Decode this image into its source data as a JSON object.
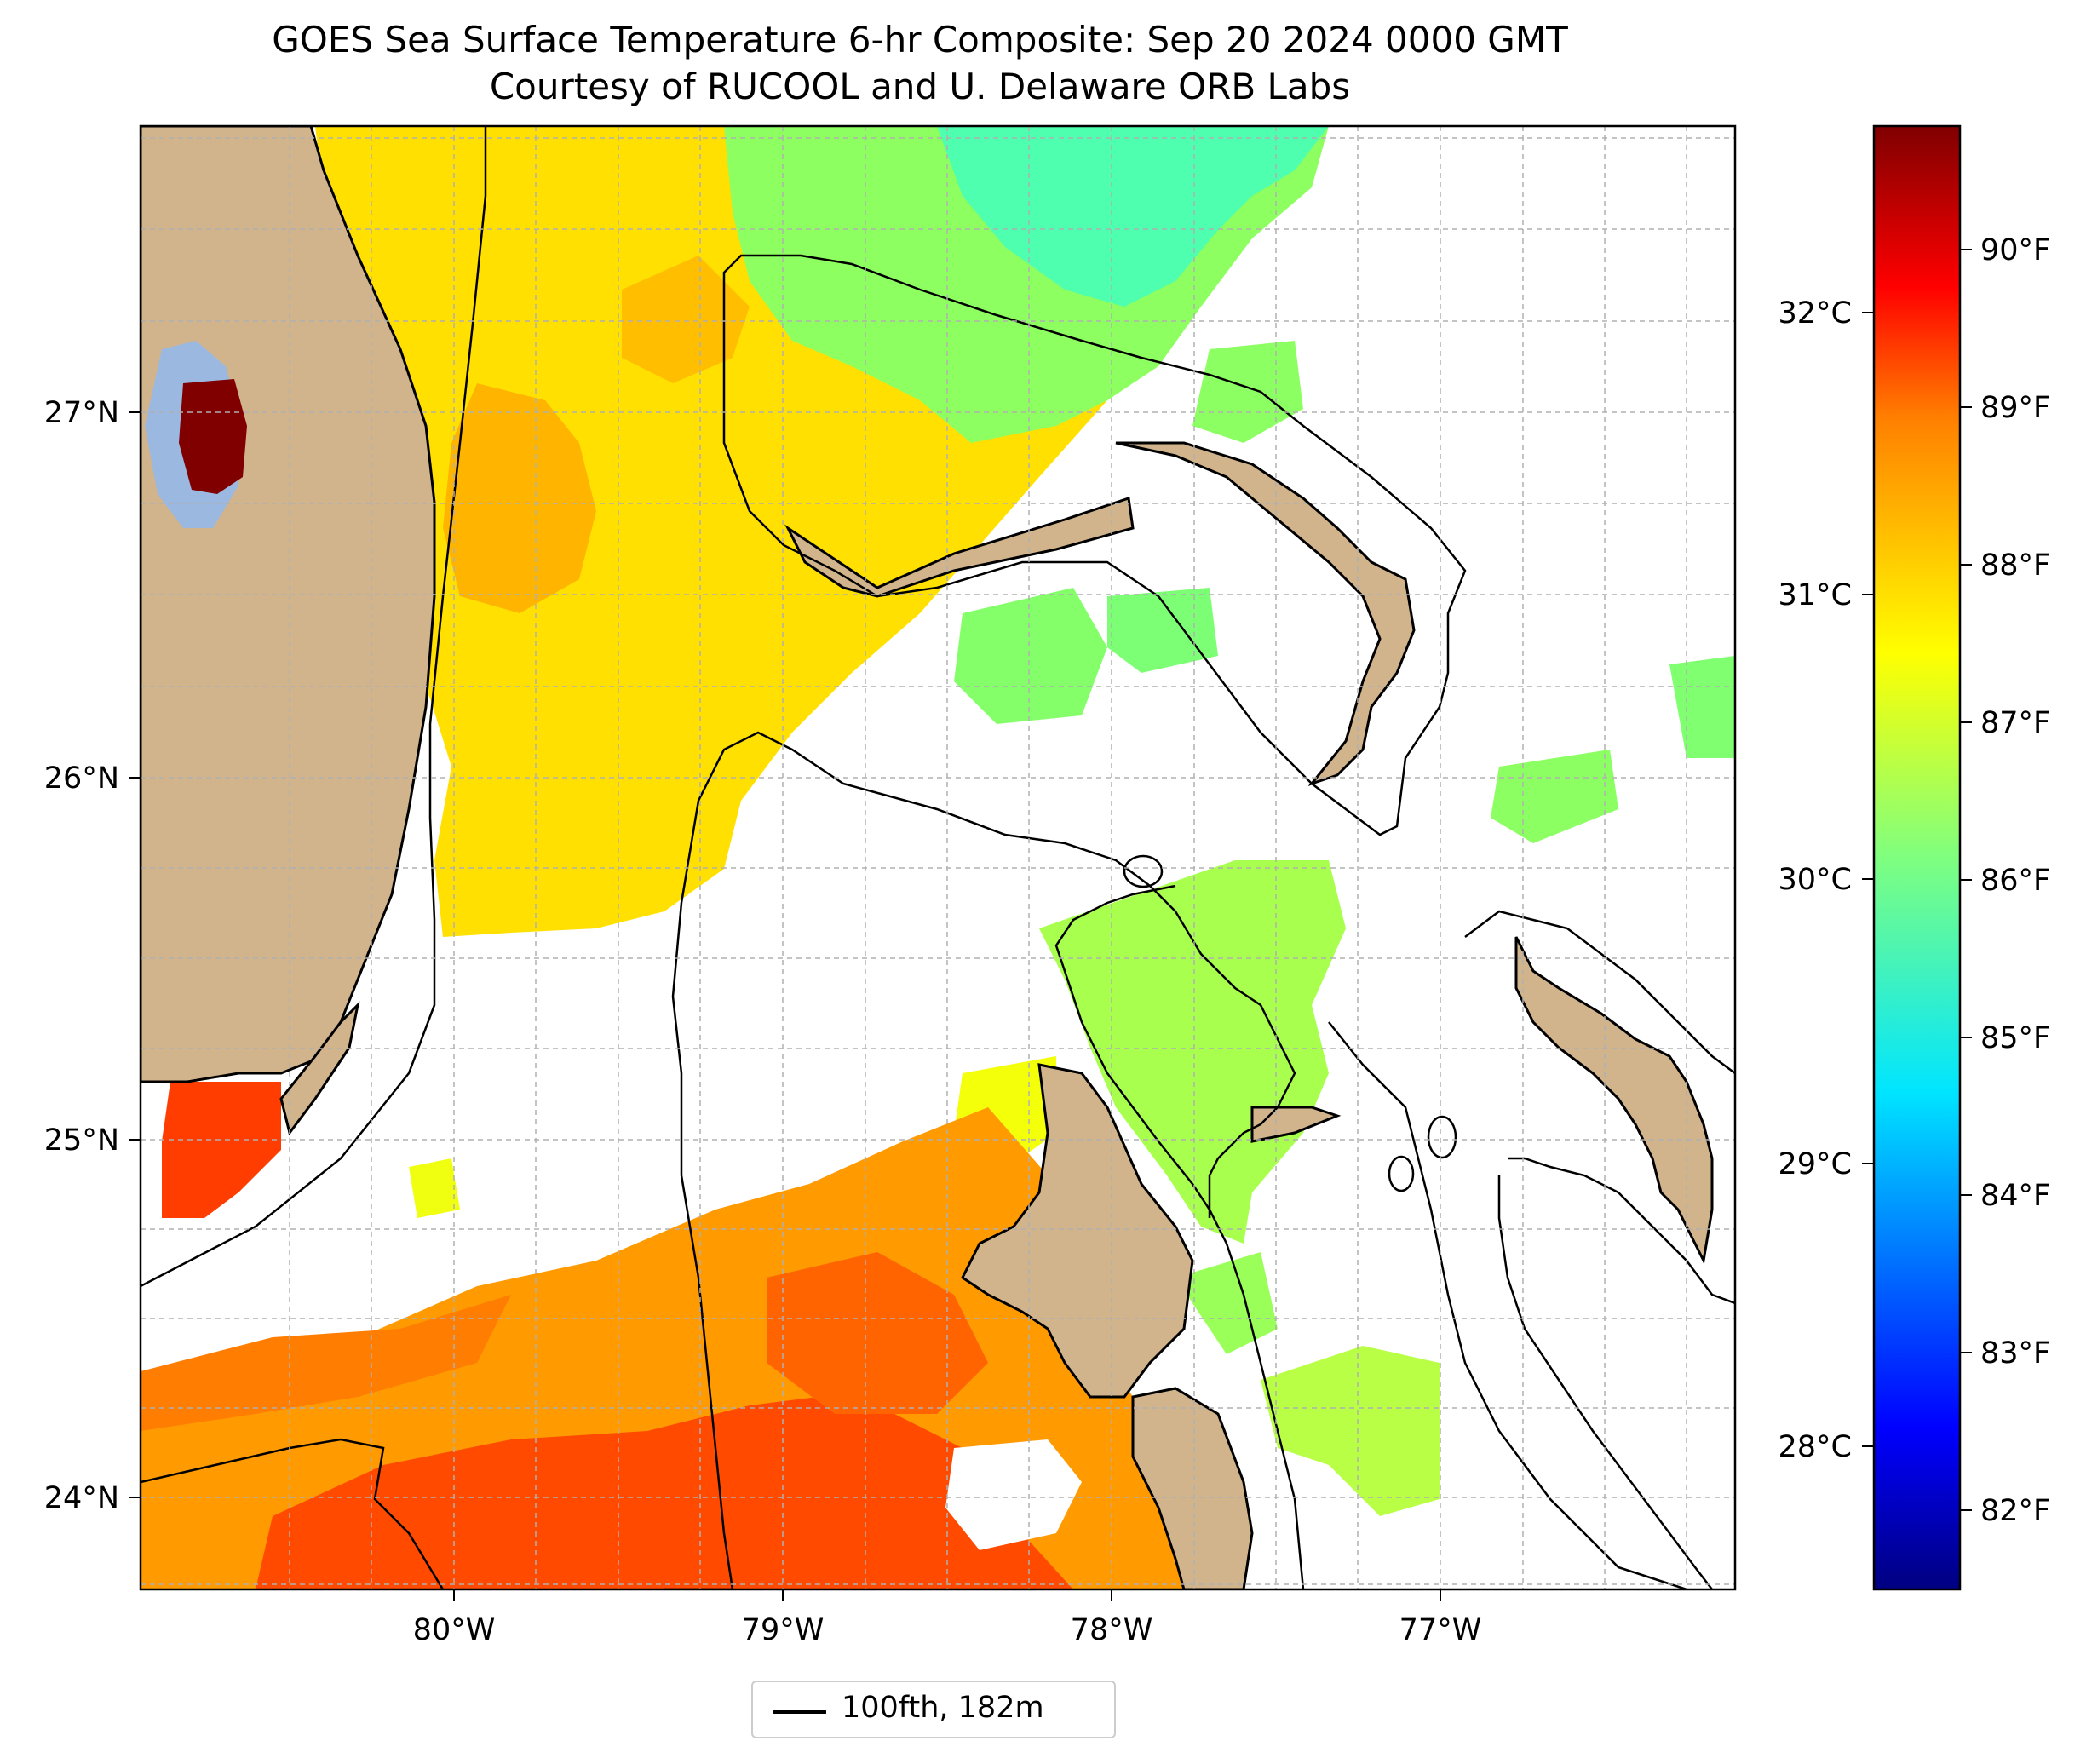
{
  "title": {
    "line1": "GOES Sea Surface Temperature 6-hr Composite: Sep 20 2024 0000 GMT",
    "line2": "Courtesy of RUCOOL and U. Delaware ORB Labs"
  },
  "map": {
    "lat_labels": [
      "27°N",
      "26°N",
      "25°N",
      "24°N"
    ],
    "lon_labels": [
      "80°W",
      "79°W",
      "78°W",
      "77°W"
    ],
    "extent": {
      "lon_min": -80.95,
      "lon_max": -76.1,
      "lat_min": 23.72,
      "lat_max": 27.78
    },
    "land_color": "#d2b48c",
    "lake_color": "#9ab8e0",
    "grid": true
  },
  "colorbar": {
    "colormap": "jet",
    "celsius_labels": [
      "32°C",
      "31°C",
      "30°C",
      "29°C",
      "28°C"
    ],
    "fahrenheit_labels": [
      "90°F",
      "89°F",
      "88°F",
      "87°F",
      "86°F",
      "85°F",
      "84°F",
      "83°F",
      "82°F"
    ]
  },
  "legend": {
    "label": "100fth, 182m",
    "position": "bottom-center"
  },
  "colors": {
    "very_warm": "#ff3d00",
    "warm": "#ffa600",
    "mid": "#e6ff12",
    "cool": "#a6ff50",
    "coolest": "#4dffae"
  }
}
